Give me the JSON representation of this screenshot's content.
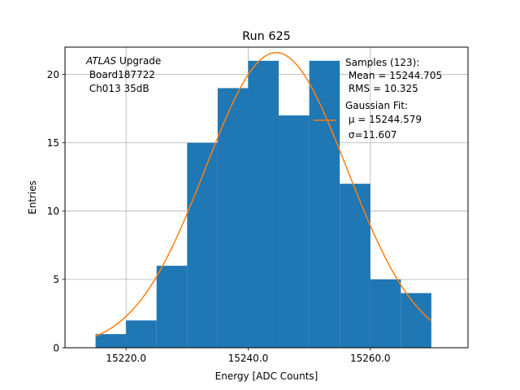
{
  "chart_data": {
    "type": "bar",
    "title": "Run 625",
    "xlabel": "Energy [ADC Counts]",
    "ylabel": "Entries",
    "xlim": [
      15210,
      15276
    ],
    "ylim": [
      0,
      22
    ],
    "grid": true,
    "x_ticks": [
      15220,
      15240,
      15260
    ],
    "x_tick_labels": [
      "15220.0",
      "15240.0",
      "15260.0"
    ],
    "y_ticks": [
      0,
      5,
      10,
      15,
      20
    ],
    "y_tick_labels": [
      "0",
      "5",
      "10",
      "15",
      "20"
    ],
    "bins": [
      {
        "x0": 15215,
        "x1": 15220,
        "count": 1
      },
      {
        "x0": 15220,
        "x1": 15225,
        "count": 2
      },
      {
        "x0": 15225,
        "x1": 15230,
        "count": 6
      },
      {
        "x0": 15230,
        "x1": 15235,
        "count": 15
      },
      {
        "x0": 15235,
        "x1": 15240,
        "count": 19
      },
      {
        "x0": 15240,
        "x1": 15245,
        "count": 21
      },
      {
        "x0": 15245,
        "x1": 15250,
        "count": 17
      },
      {
        "x0": 15250,
        "x1": 15255,
        "count": 21
      },
      {
        "x0": 15255,
        "x1": 15260,
        "count": 12
      },
      {
        "x0": 15260,
        "x1": 15265,
        "count": 5
      },
      {
        "x0": 15265,
        "x1": 15270,
        "count": 4
      }
    ],
    "fit": {
      "mu": 15244.579,
      "sigma": 11.607,
      "amplitude": 21.6,
      "x_range": [
        15215,
        15270
      ]
    },
    "bar_color": "#1f77b4",
    "fit_color": "#ff7f0e",
    "annotation_left": {
      "line1_italic": "ATLAS",
      "line1_rest": " Upgrade",
      "line2": " Board187722",
      "line3": " Ch013 35dB"
    },
    "legend": {
      "placement": "top-right",
      "samples_lines": [
        "Samples (123):",
        " Mean = 15244.705",
        " RMS = 10.325"
      ],
      "fit_lines": [
        "Gaussian Fit:",
        " μ = 15244.579",
        " σ=11.607"
      ]
    }
  }
}
